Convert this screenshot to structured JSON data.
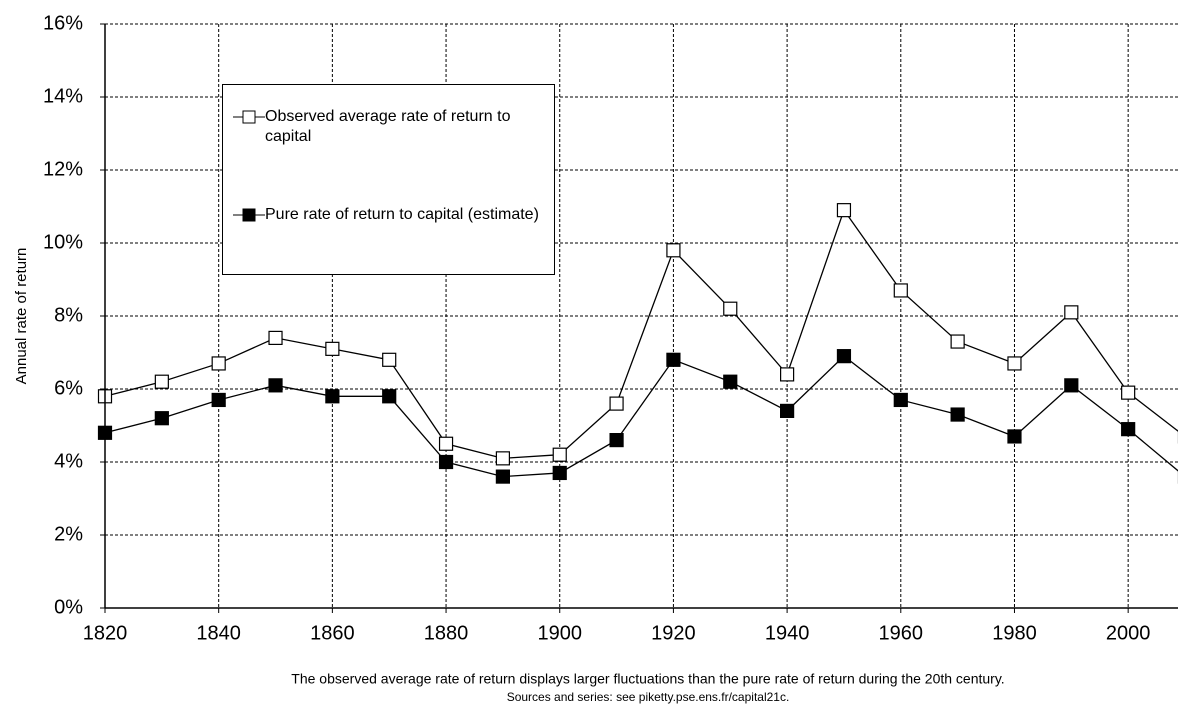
{
  "chart_data": {
    "type": "line",
    "y_label": "Annual rate of return",
    "caption": "The observed average rate of return displays larger fluctuations than the pure rate of return during the 20th century.",
    "source": "Sources and series: see piketty.pse.ens.fr/capital21c.",
    "x": [
      1820,
      1830,
      1840,
      1850,
      1860,
      1870,
      1880,
      1890,
      1900,
      1910,
      1920,
      1930,
      1940,
      1950,
      1960,
      1970,
      1980,
      1990,
      2000,
      2010
    ],
    "series": [
      {
        "name": "Observed average rate of return to capital",
        "color": "#ffffff",
        "values": [
          5.8,
          6.2,
          6.7,
          7.4,
          7.1,
          6.8,
          4.5,
          4.1,
          4.2,
          5.6,
          9.8,
          8.2,
          6.4,
          10.9,
          8.7,
          7.3,
          6.7,
          8.1,
          5.9,
          4.7
        ]
      },
      {
        "name": "Pure rate of return to capital (estimate)",
        "color": "#000000",
        "values": [
          4.8,
          5.2,
          5.7,
          6.1,
          5.8,
          5.8,
          4.0,
          3.6,
          3.7,
          4.6,
          6.8,
          6.2,
          5.4,
          6.9,
          5.7,
          5.3,
          4.7,
          6.1,
          4.9,
          3.6
        ]
      }
    ],
    "xlim": [
      1820,
      2010
    ],
    "xticks": [
      1820,
      1840,
      1860,
      1880,
      1900,
      1920,
      1940,
      1960,
      1980,
      2000
    ],
    "ylim": [
      0,
      16
    ],
    "yticks": [
      {
        "value": 0,
        "label": "0%"
      },
      {
        "value": 2,
        "label": "2%"
      },
      {
        "value": 4,
        "label": "4%"
      },
      {
        "value": 6,
        "label": "6%"
      },
      {
        "value": 8,
        "label": "8%"
      },
      {
        "value": 10,
        "label": "10%"
      },
      {
        "value": 12,
        "label": "12%"
      },
      {
        "value": 14,
        "label": "14%"
      },
      {
        "value": 16,
        "label": "16%"
      }
    ],
    "grid": true
  }
}
